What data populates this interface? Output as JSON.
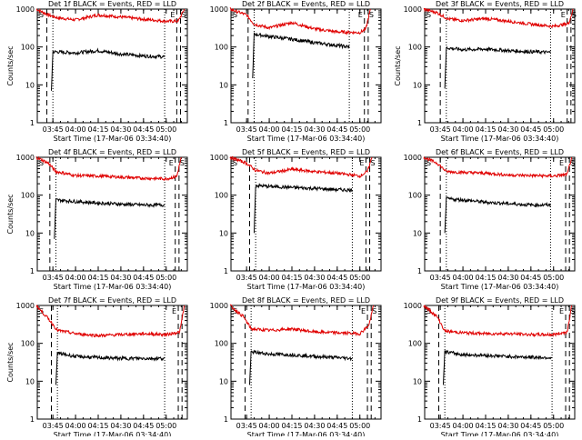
{
  "chart_data": [
    {
      "type": "line",
      "title": "Det 1f BLACK = Events, RED = LLD",
      "xlabel": "Start Time (17-Mar-06 03:34:40)",
      "ylabel": "Counts/sec",
      "xticks": [
        "03:45",
        "04:00",
        "04:15",
        "04:30",
        "04:45",
        "05:00"
      ],
      "yticks": [
        "1",
        "10",
        "100",
        "1000"
      ],
      "yscale": "log",
      "ylim": [
        1,
        1000
      ],
      "markers_left": [
        "S"
      ],
      "markers_right": [
        "E",
        "S"
      ],
      "series": [
        {
          "color": "#000000",
          "x": [
            "03:44",
            "03:45",
            "04:00",
            "04:15",
            "04:30",
            "04:45",
            "04:59"
          ],
          "y": [
            7,
            75,
            70,
            80,
            65,
            58,
            55
          ]
        },
        {
          "color": "#e00000",
          "x": [
            "03:34",
            "03:42",
            "03:48",
            "04:00",
            "04:15",
            "04:30",
            "04:45",
            "05:00",
            "05:08",
            "05:12"
          ],
          "y": [
            1000,
            700,
            590,
            520,
            700,
            620,
            540,
            480,
            480,
            1000
          ]
        }
      ]
    },
    {
      "type": "line",
      "title": "Det 2f BLACK = Events, RED = LLD",
      "xlabel": "Start Time (17-Mar-06 03:34:40)",
      "ylabel": "",
      "xticks": [
        "03:45",
        "04:00",
        "04:15",
        "04:30",
        "04:45",
        "05:00"
      ],
      "yticks": [
        "1",
        "10",
        "100",
        "1000"
      ],
      "yscale": "log",
      "ylim": [
        1,
        1000
      ],
      "markers_left": [
        "S"
      ],
      "markers_right": [
        "E",
        "S"
      ],
      "series": [
        {
          "color": "#000000",
          "x": [
            "03:49",
            "03:50",
            "04:00",
            "04:15",
            "04:30",
            "04:45",
            "04:53"
          ],
          "y": [
            15,
            220,
            190,
            160,
            130,
            110,
            100
          ]
        },
        {
          "color": "#e00000",
          "x": [
            "03:34",
            "03:45",
            "03:50",
            "04:00",
            "04:15",
            "04:30",
            "04:45",
            "05:00",
            "05:04",
            "05:07"
          ],
          "y": [
            1000,
            700,
            400,
            320,
            440,
            300,
            250,
            240,
            300,
            1000
          ]
        }
      ]
    },
    {
      "type": "line",
      "title": "Det 3f BLACK = Events, RED = LLD",
      "xlabel": "Start Time (17-Mar-06 03:34:40)",
      "ylabel": "Counts/sec",
      "xticks": [
        "03:45",
        "04:00",
        "04:15",
        "04:30",
        "04:45",
        "05:00"
      ],
      "yticks": [
        "1",
        "10",
        "100",
        "1000"
      ],
      "yscale": "log",
      "ylim": [
        1,
        1000
      ],
      "markers_left": [
        "S"
      ],
      "markers_right": [
        "E",
        "S"
      ],
      "series": [
        {
          "color": "#000000",
          "x": [
            "03:48",
            "03:49",
            "04:00",
            "04:15",
            "04:30",
            "04:45",
            "04:58"
          ],
          "y": [
            8,
            95,
            85,
            88,
            80,
            75,
            72
          ]
        },
        {
          "color": "#e00000",
          "x": [
            "03:34",
            "03:43",
            "03:50",
            "04:00",
            "04:15",
            "04:30",
            "04:45",
            "05:00",
            "05:10",
            "05:13"
          ],
          "y": [
            1000,
            800,
            550,
            500,
            560,
            480,
            400,
            350,
            420,
            1000
          ]
        }
      ]
    },
    {
      "type": "line",
      "title": "Det 4f BLACK = Events, RED = LLD",
      "xlabel": "Start Time (17-Mar-06 03:34:40)",
      "ylabel": "Counts/sec",
      "xticks": [
        "03:45",
        "04:00",
        "04:15",
        "04:30",
        "04:45",
        "05:00"
      ],
      "yticks": [
        "1",
        "10",
        "100",
        "1000"
      ],
      "yscale": "log",
      "ylim": [
        1,
        1000
      ],
      "markers_left": [
        "S"
      ],
      "markers_right": [
        "E",
        "S"
      ],
      "series": [
        {
          "color": "#000000",
          "x": [
            "03:46",
            "03:47",
            "04:00",
            "04:15",
            "04:30",
            "04:45",
            "04:59"
          ],
          "y": [
            7,
            75,
            68,
            62,
            58,
            55,
            55
          ]
        },
        {
          "color": "#e00000",
          "x": [
            "03:34",
            "03:42",
            "03:47",
            "04:00",
            "04:15",
            "04:30",
            "04:45",
            "05:00",
            "05:07",
            "05:10"
          ],
          "y": [
            1000,
            700,
            420,
            330,
            320,
            300,
            280,
            270,
            310,
            1000
          ]
        }
      ]
    },
    {
      "type": "line",
      "title": "Det 5f BLACK = Events, RED = LLD",
      "xlabel": "Start Time (17-Mar-06 03:34:40)",
      "ylabel": "",
      "xticks": [
        "03:45",
        "04:00",
        "04:15",
        "04:30",
        "04:45",
        "05:00"
      ],
      "yticks": [
        "1",
        "10",
        "100",
        "1000"
      ],
      "yscale": "log",
      "ylim": [
        1,
        1000
      ],
      "markers_left": [
        "S"
      ],
      "markers_right": [
        "E",
        "S"
      ],
      "series": [
        {
          "color": "#000000",
          "x": [
            "03:50",
            "03:51",
            "04:00",
            "04:15",
            "04:30",
            "04:45",
            "04:55"
          ],
          "y": [
            10,
            180,
            170,
            160,
            150,
            140,
            135
          ]
        },
        {
          "color": "#e00000",
          "x": [
            "03:34",
            "03:45",
            "03:51",
            "04:00",
            "04:15",
            "04:30",
            "04:45",
            "05:00",
            "05:05",
            "05:08"
          ],
          "y": [
            1000,
            700,
            450,
            380,
            480,
            420,
            380,
            320,
            420,
            1000
          ]
        }
      ]
    },
    {
      "type": "line",
      "title": "Det 6f BLACK = Events, RED = LLD",
      "xlabel": "Start Time (17-Mar-06 03:34:40)",
      "ylabel": "",
      "xticks": [
        "03:45",
        "04:00",
        "04:15",
        "04:30",
        "04:45",
        "05:00"
      ],
      "yticks": [
        "1",
        "10",
        "100",
        "1000"
      ],
      "yscale": "log",
      "ylim": [
        1,
        1000
      ],
      "markers_left": [
        "S"
      ],
      "markers_right": [
        "E",
        "S"
      ],
      "series": [
        {
          "color": "#000000",
          "x": [
            "03:48",
            "03:49",
            "04:00",
            "04:15",
            "04:30",
            "04:45",
            "04:58"
          ],
          "y": [
            10,
            80,
            75,
            65,
            60,
            55,
            55
          ]
        },
        {
          "color": "#e00000",
          "x": [
            "03:34",
            "03:43",
            "03:49",
            "04:00",
            "04:15",
            "04:30",
            "04:45",
            "05:00",
            "05:09",
            "05:12"
          ],
          "y": [
            1000,
            700,
            420,
            400,
            380,
            340,
            330,
            320,
            350,
            1000
          ]
        }
      ]
    },
    {
      "type": "line",
      "title": "Det 7f BLACK = Events, RED = LLD",
      "xlabel": "Start Time (17-Mar-06 03:34:40)",
      "ylabel": "Counts/sec",
      "xticks": [
        "03:45",
        "04:00",
        "04:15",
        "04:30",
        "04:45",
        "05:00"
      ],
      "yticks": [
        "1",
        "10",
        "100",
        "1000"
      ],
      "yscale": "log",
      "ylim": [
        1,
        1000
      ],
      "markers_left": [
        "S"
      ],
      "markers_right": [
        "E"
      ],
      "series": [
        {
          "color": "#000000",
          "x": [
            "03:47",
            "03:48",
            "04:00",
            "04:15",
            "04:30",
            "04:45",
            "04:59"
          ],
          "y": [
            8,
            55,
            45,
            42,
            40,
            40,
            40
          ]
        },
        {
          "color": "#e00000",
          "x": [
            "03:34",
            "03:43",
            "03:48",
            "04:00",
            "04:15",
            "04:30",
            "04:45",
            "05:00",
            "05:09",
            "05:12"
          ],
          "y": [
            1000,
            400,
            220,
            180,
            160,
            170,
            180,
            170,
            200,
            1000
          ]
        }
      ]
    },
    {
      "type": "line",
      "title": "Det 8f BLACK = Events, RED = LLD",
      "xlabel": "Start Time (17-Mar-06 03:34:40)",
      "ylabel": "",
      "xticks": [
        "03:45",
        "04:00",
        "04:15",
        "04:30",
        "04:45",
        "05:00"
      ],
      "yticks": [
        "1",
        "10",
        "100",
        "1000"
      ],
      "yscale": "log",
      "ylim": [
        1,
        1000
      ],
      "markers_left": [
        "S"
      ],
      "markers_right": [
        "E",
        "S"
      ],
      "series": [
        {
          "color": "#000000",
          "x": [
            "03:47",
            "03:48",
            "04:00",
            "04:15",
            "04:30",
            "04:45",
            "04:55"
          ],
          "y": [
            8,
            60,
            52,
            50,
            45,
            42,
            40
          ]
        },
        {
          "color": "#e00000",
          "x": [
            "03:34",
            "03:43",
            "03:48",
            "04:00",
            "04:15",
            "04:30",
            "04:45",
            "05:00",
            "05:06",
            "05:09"
          ],
          "y": [
            1000,
            500,
            240,
            220,
            240,
            200,
            190,
            180,
            300,
            1000
          ]
        }
      ]
    },
    {
      "type": "line",
      "title": "Det 9f BLACK = Events, RED = LLD",
      "xlabel": "Start Time (17-Mar-06 03:34:40)",
      "ylabel": "",
      "xticks": [
        "03:45",
        "04:00",
        "04:15",
        "04:30",
        "04:45",
        "05:00"
      ],
      "yticks": [
        "1",
        "10",
        "100",
        "1000"
      ],
      "yscale": "log",
      "ylim": [
        1,
        1000
      ],
      "markers_left": [
        "S"
      ],
      "markers_right": [
        "E",
        "S"
      ],
      "series": [
        {
          "color": "#000000",
          "x": [
            "03:47",
            "03:48",
            "04:00",
            "04:15",
            "04:30",
            "04:45",
            "04:59"
          ],
          "y": [
            8,
            60,
            50,
            48,
            45,
            43,
            42
          ]
        },
        {
          "color": "#e00000",
          "x": [
            "03:34",
            "03:43",
            "03:48",
            "04:00",
            "04:15",
            "04:30",
            "04:45",
            "05:00",
            "05:09",
            "05:12"
          ],
          "y": [
            1000,
            500,
            210,
            190,
            180,
            180,
            170,
            170,
            200,
            1000
          ]
        }
      ]
    }
  ]
}
